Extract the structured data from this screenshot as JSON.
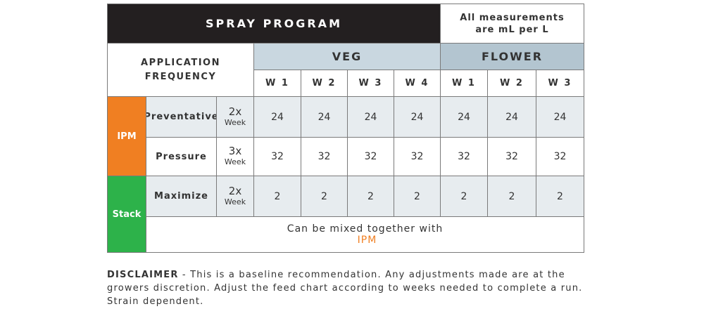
{
  "header": {
    "title": "SPRAY PROGRAM",
    "note": "All measurements are mL per L"
  },
  "frequency_header": "APPLICATION FREQUENCY",
  "stages": [
    {
      "name": "VEG",
      "weeks": [
        "W 1",
        "W 2",
        "W 3",
        "W 4"
      ]
    },
    {
      "name": "FLOWER",
      "weeks": [
        "W 1",
        "W 2",
        "W 3"
      ]
    }
  ],
  "groups": [
    {
      "name": "IPM",
      "rows": [
        {
          "name": "Preventative",
          "freq": "2x",
          "unit": "Week",
          "values": [
            24,
            24,
            24,
            24,
            24,
            24,
            24
          ]
        },
        {
          "name": "Pressure",
          "freq": "3x",
          "unit": "Week",
          "values": [
            32,
            32,
            32,
            32,
            32,
            32,
            32
          ]
        }
      ]
    },
    {
      "name": "Stack",
      "rows": [
        {
          "name": "Maximize",
          "freq": "2x",
          "unit": "Week",
          "values": [
            2,
            2,
            2,
            2,
            2,
            2,
            2
          ]
        }
      ],
      "note": {
        "text": "Can be mixed together with",
        "highlight": "IPM"
      }
    }
  ],
  "disclaimer": {
    "label": "DISCLAIMER",
    "text": "- This is a baseline recommendation. Any adjustments made are at the growers discretion. Adjust the feed chart according to weeks needed to complete a run. Strain dependent."
  }
}
